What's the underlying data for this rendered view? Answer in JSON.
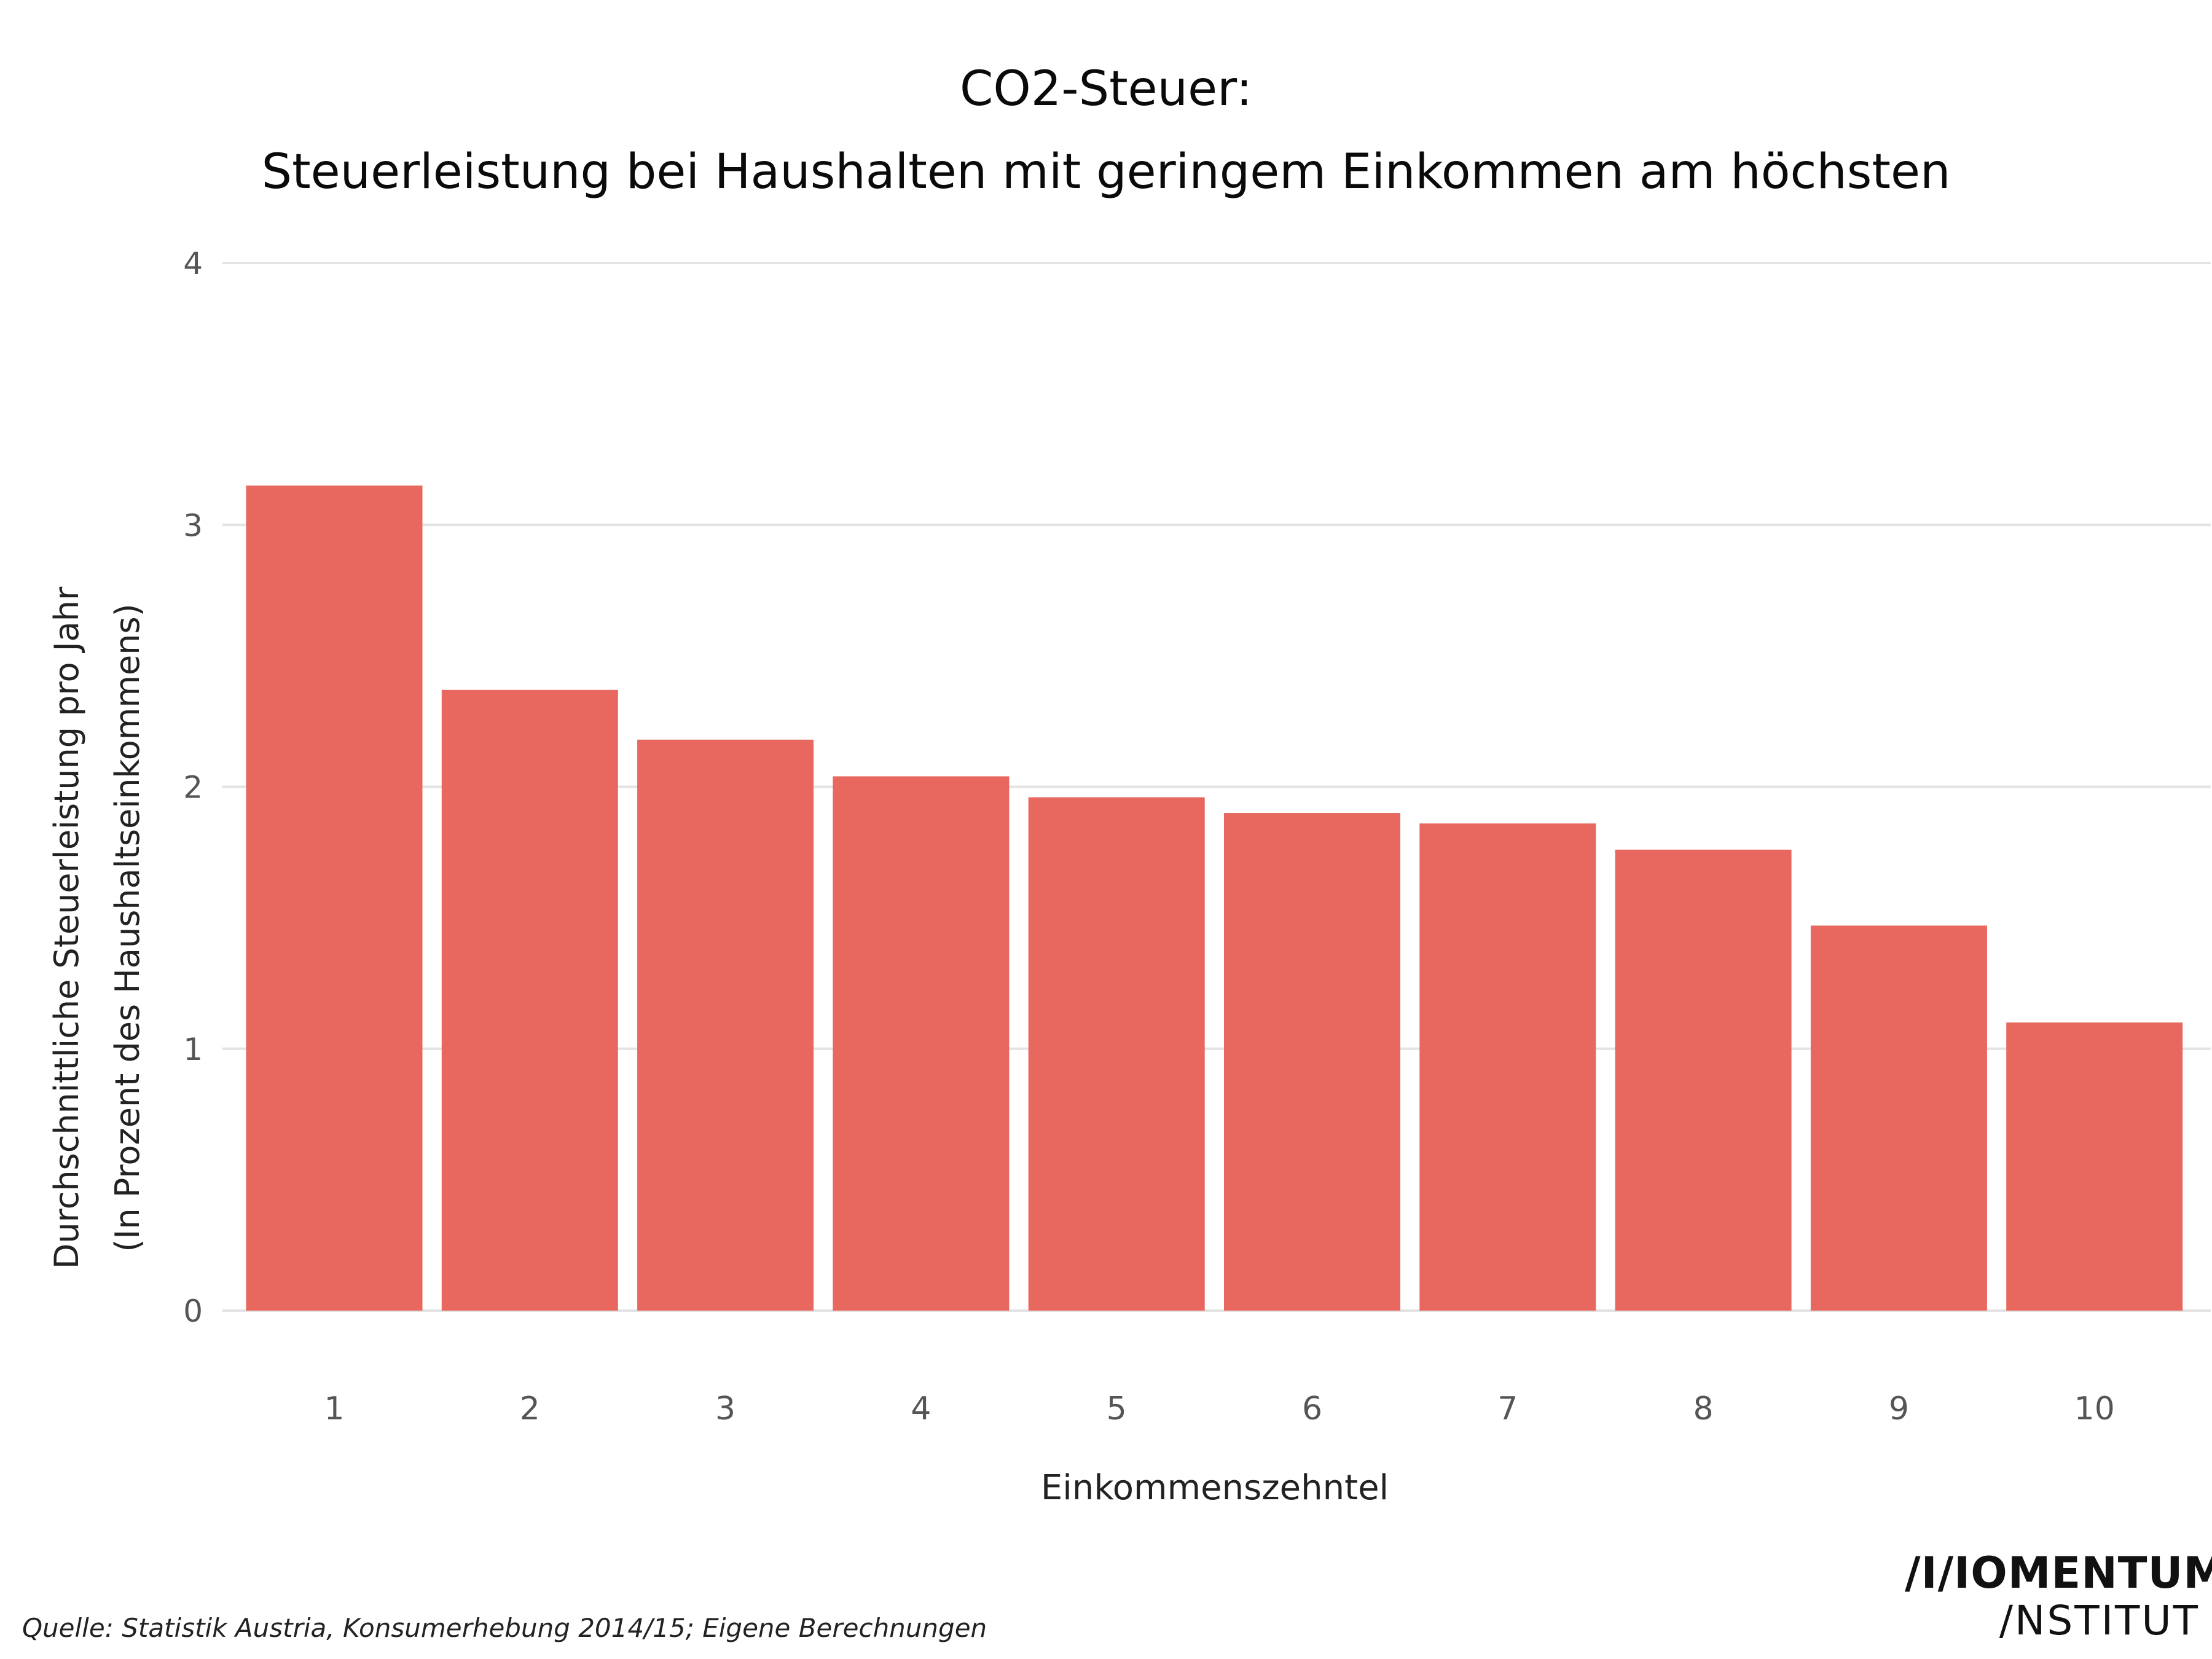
{
  "chart_data": {
    "type": "bar",
    "title": "CO2-Steuer:",
    "subtitle": "Steuerleistung bei Haushalten mit geringem Einkommen am höchsten",
    "xlabel": "Einkommenszehntel",
    "ylabel_line1": "Durchschnittliche Steuerleistung pro Jahr",
    "ylabel_line2": "(In Prozent des Haushaltseinkommens)",
    "categories": [
      "1",
      "2",
      "3",
      "4",
      "5",
      "6",
      "7",
      "8",
      "9",
      "10"
    ],
    "values": [
      3.15,
      2.37,
      2.18,
      2.04,
      1.96,
      1.9,
      1.86,
      1.76,
      1.47,
      1.1
    ],
    "ylim": [
      0,
      4
    ],
    "yticks": [
      "0",
      "1",
      "2",
      "3",
      "4"
    ],
    "grid": true,
    "legend": "none",
    "bar_color": "#e8685f",
    "grid_color": "#e3e3e3"
  },
  "source": "Quelle: Statistik Austria, Konsumerhebung 2014/15; Eigene Berechnungen",
  "logo": {
    "line1": "/I/IOMENTUM",
    "line2": "/NSTITUT"
  }
}
